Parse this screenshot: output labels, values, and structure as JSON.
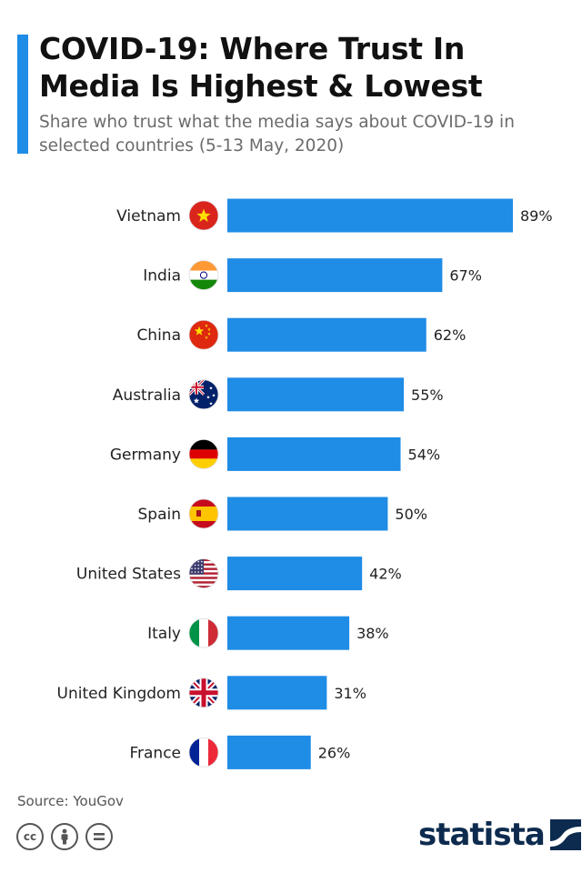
{
  "header": {
    "title": "COVID-19: Where Trust In Media Is Highest & Lowest",
    "subtitle": "Share who trust what the media says about COVID-19 in selected countries (5-13 May, 2020)"
  },
  "footer": {
    "source": "Source: YouGov",
    "brand": "statista"
  },
  "icons": {
    "license": [
      "cc-icon",
      "by-icon",
      "nd-icon"
    ],
    "brand": "statista-logo-icon"
  },
  "colors": {
    "accent": "#1f8ce6",
    "bar": "#1f8ce6",
    "brand": "#0d2b4e"
  },
  "chart_data": {
    "type": "bar",
    "orientation": "horizontal",
    "title": "COVID-19: Where Trust In Media Is Highest & Lowest",
    "subtitle": "Share who trust what the media says about COVID-19 in selected countries (5-13 May, 2020)",
    "categories": [
      "Vietnam",
      "India",
      "China",
      "Australia",
      "Germany",
      "Spain",
      "United States",
      "Italy",
      "United Kingdom",
      "France"
    ],
    "values": [
      89,
      67,
      62,
      55,
      54,
      50,
      42,
      38,
      31,
      26
    ],
    "value_labels": [
      "89%",
      "67%",
      "62%",
      "55%",
      "54%",
      "50%",
      "42%",
      "38%",
      "31%",
      "26%"
    ],
    "flags": [
      "vietnam-flag-icon",
      "india-flag-icon",
      "china-flag-icon",
      "australia-flag-icon",
      "germany-flag-icon",
      "spain-flag-icon",
      "united-states-flag-icon",
      "italy-flag-icon",
      "united-kingdom-flag-icon",
      "france-flag-icon"
    ],
    "xlabel": "",
    "ylabel": "",
    "unit": "%",
    "xlim": [
      0,
      100
    ],
    "grid": false,
    "legend": "none"
  }
}
